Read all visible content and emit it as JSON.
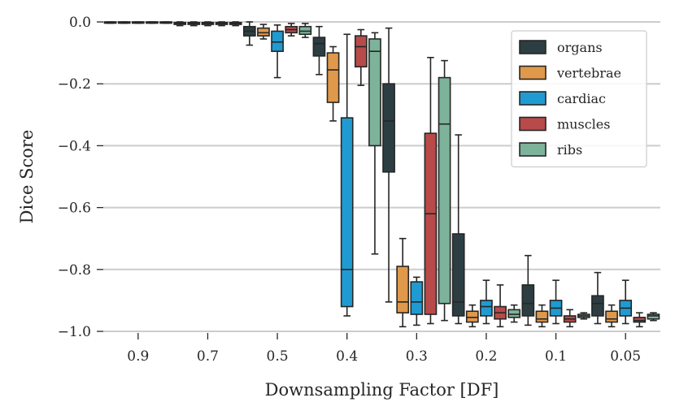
{
  "chart_data": {
    "type": "box",
    "xlabel": "Downsampling Factor [DF]",
    "ylabel": "Dice Score",
    "ylim": [
      -1.0,
      0.0
    ],
    "yticks": [
      0.0,
      -0.2,
      -0.4,
      -0.6,
      -0.8,
      -1.0
    ],
    "ytick_labels": [
      "0.0",
      "−0.2",
      "−0.4",
      "−0.6",
      "−0.8",
      "−1.0"
    ],
    "categories": [
      "0.9",
      "0.7",
      "0.5",
      "0.4",
      "0.3",
      "0.2",
      "0.1",
      "0.05"
    ],
    "grid": true,
    "legend_position": "top-right",
    "series": [
      {
        "name": "organs",
        "color": "#2c3e42",
        "boxes": [
          {
            "whislo": -0.004,
            "q1": -0.002,
            "med": -0.001,
            "q3": 0.0,
            "whishi": 0.0
          },
          {
            "whislo": -0.012,
            "q1": -0.008,
            "med": -0.005,
            "q3": -0.002,
            "whishi": 0.0
          },
          {
            "whislo": -0.075,
            "q1": -0.045,
            "med": -0.03,
            "q3": -0.015,
            "whishi": 0.0
          },
          {
            "whislo": -0.17,
            "q1": -0.11,
            "med": -0.07,
            "q3": -0.05,
            "whishi": -0.015
          },
          {
            "whislo": -0.905,
            "q1": -0.485,
            "med": -0.32,
            "q3": -0.2,
            "whishi": -0.02
          },
          {
            "whislo": -0.975,
            "q1": -0.95,
            "med": -0.905,
            "q3": -0.685,
            "whishi": -0.365
          },
          {
            "whislo": -0.98,
            "q1": -0.95,
            "med": -0.91,
            "q3": -0.85,
            "whishi": -0.755
          },
          {
            "whislo": -0.975,
            "q1": -0.95,
            "med": -0.91,
            "q3": -0.885,
            "whishi": -0.81
          }
        ]
      },
      {
        "name": "vertebrae",
        "color": "#e0994a",
        "boxes": [
          {
            "whislo": -0.004,
            "q1": -0.002,
            "med": -0.001,
            "q3": 0.0,
            "whishi": 0.0
          },
          {
            "whislo": -0.012,
            "q1": -0.008,
            "med": -0.005,
            "q3": -0.002,
            "whishi": 0.0
          },
          {
            "whislo": -0.055,
            "q1": -0.045,
            "med": -0.035,
            "q3": -0.02,
            "whishi": -0.008
          },
          {
            "whislo": -0.32,
            "q1": -0.26,
            "med": -0.155,
            "q3": -0.1,
            "whishi": -0.08
          },
          {
            "whislo": -0.985,
            "q1": -0.94,
            "med": -0.905,
            "q3": -0.79,
            "whishi": -0.7
          },
          {
            "whislo": -0.985,
            "q1": -0.97,
            "med": -0.955,
            "q3": -0.935,
            "whishi": -0.915
          },
          {
            "whislo": -0.985,
            "q1": -0.97,
            "med": -0.96,
            "q3": -0.935,
            "whishi": -0.915
          },
          {
            "whislo": -0.985,
            "q1": -0.97,
            "med": -0.96,
            "q3": -0.935,
            "whishi": -0.915
          }
        ]
      },
      {
        "name": "cardiac",
        "color": "#1f9bd1",
        "boxes": [
          {
            "whislo": -0.004,
            "q1": -0.002,
            "med": -0.001,
            "q3": 0.0,
            "whishi": 0.0
          },
          {
            "whislo": -0.012,
            "q1": -0.008,
            "med": -0.005,
            "q3": -0.002,
            "whishi": 0.0
          },
          {
            "whislo": -0.18,
            "q1": -0.095,
            "med": -0.065,
            "q3": -0.03,
            "whishi": -0.01
          },
          {
            "whislo": -0.95,
            "q1": -0.92,
            "med": -0.8,
            "q3": -0.31,
            "whishi": -0.04
          },
          {
            "whislo": -0.98,
            "q1": -0.945,
            "med": -0.905,
            "q3": -0.84,
            "whishi": -0.825
          },
          {
            "whislo": -0.975,
            "q1": -0.95,
            "med": -0.92,
            "q3": -0.9,
            "whishi": -0.835
          },
          {
            "whislo": -0.975,
            "q1": -0.95,
            "med": -0.925,
            "q3": -0.9,
            "whishi": -0.835
          },
          {
            "whislo": -0.975,
            "q1": -0.95,
            "med": -0.925,
            "q3": -0.9,
            "whishi": -0.835
          }
        ]
      },
      {
        "name": "muscles",
        "color": "#b84a4a",
        "boxes": [
          {
            "whislo": -0.004,
            "q1": -0.002,
            "med": -0.001,
            "q3": 0.0,
            "whishi": 0.0
          },
          {
            "whislo": -0.012,
            "q1": -0.008,
            "med": -0.005,
            "q3": -0.002,
            "whishi": 0.0
          },
          {
            "whislo": -0.045,
            "q1": -0.035,
            "med": -0.025,
            "q3": -0.015,
            "whishi": -0.005
          },
          {
            "whislo": -0.205,
            "q1": -0.145,
            "med": -0.08,
            "q3": -0.045,
            "whishi": -0.025
          },
          {
            "whislo": -0.975,
            "q1": -0.945,
            "med": -0.62,
            "q3": -0.36,
            "whishi": -0.115
          },
          {
            "whislo": -0.985,
            "q1": -0.96,
            "med": -0.94,
            "q3": -0.92,
            "whishi": -0.85
          },
          {
            "whislo": -0.985,
            "q1": -0.97,
            "med": -0.96,
            "q3": -0.95,
            "whishi": -0.93
          },
          {
            "whislo": -0.985,
            "q1": -0.97,
            "med": -0.965,
            "q3": -0.955,
            "whishi": -0.94
          }
        ]
      },
      {
        "name": "ribs",
        "color": "#7db39a",
        "boxes": [
          {
            "whislo": -0.004,
            "q1": -0.002,
            "med": -0.001,
            "q3": 0.0,
            "whishi": 0.0
          },
          {
            "whislo": -0.012,
            "q1": -0.008,
            "med": -0.005,
            "q3": -0.002,
            "whishi": 0.0
          },
          {
            "whislo": -0.05,
            "q1": -0.04,
            "med": -0.03,
            "q3": -0.015,
            "whishi": -0.005
          },
          {
            "whislo": -0.75,
            "q1": -0.4,
            "med": -0.095,
            "q3": -0.055,
            "whishi": -0.035
          },
          {
            "whislo": -0.965,
            "q1": -0.91,
            "med": -0.33,
            "q3": -0.18,
            "whishi": -0.125
          },
          {
            "whislo": -0.97,
            "q1": -0.955,
            "med": -0.945,
            "q3": -0.93,
            "whishi": -0.915
          },
          {
            "whislo": -0.96,
            "q1": -0.955,
            "med": -0.95,
            "q3": -0.945,
            "whishi": -0.94
          },
          {
            "whislo": -0.965,
            "q1": -0.96,
            "med": -0.95,
            "q3": -0.945,
            "whishi": -0.94
          }
        ]
      }
    ]
  }
}
